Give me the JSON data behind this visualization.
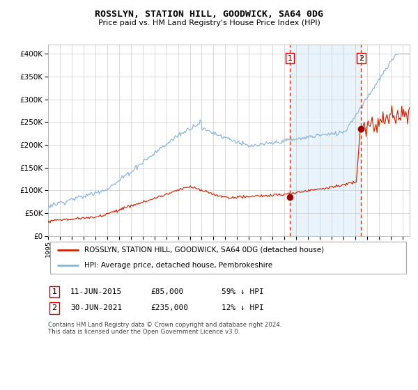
{
  "title": "ROSSLYN, STATION HILL, GOODWICK, SA64 0DG",
  "subtitle": "Price paid vs. HM Land Registry's House Price Index (HPI)",
  "legend_entry1": "ROSSLYN, STATION HILL, GOODWICK, SA64 0DG (detached house)",
  "legend_entry2": "HPI: Average price, detached house, Pembrokeshire",
  "annotation1_date": "11-JUN-2015",
  "annotation1_price": "£85,000",
  "annotation1_pct": "59% ↓ HPI",
  "annotation2_date": "30-JUN-2021",
  "annotation2_price": "£235,000",
  "annotation2_pct": "12% ↓ HPI",
  "footer": "Contains HM Land Registry data © Crown copyright and database right 2024.\nThis data is licensed under the Open Government Licence v3.0.",
  "hpi_color": "#8ab4d8",
  "price_color": "#cc2200",
  "dot_color": "#990000",
  "vline_color": "#dd2200",
  "shade_color": "#d8eaf8",
  "ylim_max": 420000,
  "sale1_year": 2015.45,
  "sale2_year": 2021.5,
  "sale1_price": 85000,
  "sale2_price": 235000
}
